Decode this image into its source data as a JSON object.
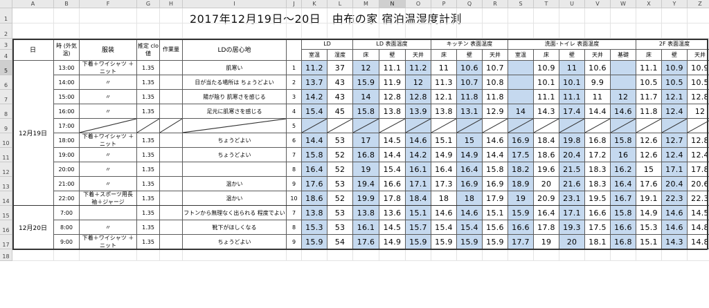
{
  "title": "2017年12月19日〜20日　由布の家 宿泊温湿度計測",
  "selected": {
    "col": "N",
    "row": "5"
  },
  "col_letters": [
    "A",
    "B",
    "F",
    "G",
    "H",
    "I",
    "J",
    "K",
    "L",
    "M",
    "N",
    "O",
    "P",
    "Q",
    "R",
    "S",
    "T",
    "U",
    "V",
    "W",
    "X",
    "Y",
    "Z"
  ],
  "row_numbers": [
    "1",
    "2",
    "3",
    "4",
    "5",
    "6",
    "7",
    "8",
    "9",
    "10",
    "11",
    "12",
    "13",
    "14",
    "15",
    "16",
    "17",
    "18"
  ],
  "headers": {
    "day": "日",
    "time": "時 (外気 温)",
    "clothing": "服装",
    "clo": "推定 clo 値",
    "work": "作業量",
    "comfort": "LDの居心地",
    "groups": [
      "LD",
      "LD 表面温度",
      "キッチン 表面温度",
      "洗面･トイレ 表面温度",
      "2F 表面温度"
    ],
    "sub": [
      "室温",
      "湿度",
      "床",
      "壁",
      "天井",
      "床",
      "壁",
      "天井",
      "室温",
      "床",
      "壁",
      "天井",
      "基礎",
      "床",
      "壁",
      "天井"
    ]
  },
  "days": [
    "12月19日",
    "12月20日"
  ],
  "rows": [
    {
      "time": "13:00",
      "clothing": "下着＋ワイシャツ ＋ニット",
      "clo": "1.35",
      "comfort": "肌寒い",
      "n": "1",
      "vals": [
        "11.2",
        "37",
        "12",
        "11.1",
        "11.2",
        "11",
        "10.6",
        "10.7",
        "",
        "10.9",
        "11",
        "10.6",
        "",
        "11.1",
        "10.9",
        "10.9"
      ]
    },
    {
      "time": "14:00",
      "clothing": "〃",
      "clo": "1.35",
      "comfort": "日が当たる場所は ちょうどよい",
      "n": "2",
      "vals": [
        "13.7",
        "43",
        "15.9",
        "11.9",
        "12",
        "11.3",
        "10.7",
        "10.8",
        "",
        "10.1",
        "10.1",
        "9.9",
        "",
        "10.5",
        "10.5",
        "10.5"
      ]
    },
    {
      "time": "15:00",
      "clothing": "〃",
      "clo": "1.35",
      "comfort": "陽が陰り 肌寒さを感じる",
      "n": "3",
      "vals": [
        "14.2",
        "43",
        "14",
        "12.8",
        "12.8",
        "12.1",
        "11.8",
        "11.8",
        "",
        "11.1",
        "11.1",
        "11",
        "12",
        "11.7",
        "12.1",
        "12.8"
      ]
    },
    {
      "time": "16:00",
      "clothing": "〃",
      "clo": "1.35",
      "comfort": "足元に肌寒さを感じる",
      "n": "4",
      "vals": [
        "15.4",
        "45",
        "15.8",
        "13.8",
        "13.9",
        "13.8",
        "13.1",
        "12.9",
        "14",
        "14.3",
        "17.4",
        "14.4",
        "14.6",
        "11.8",
        "12.4",
        "12"
      ]
    },
    {
      "time": "17:00",
      "clothing": "",
      "clo": "",
      "comfort": "",
      "n": "5",
      "vals": [
        "",
        "",
        "",
        "",
        "",
        "",
        "",
        "",
        "",
        "",
        "",
        "",
        "",
        "",
        "",
        ""
      ]
    },
    {
      "time": "18:00",
      "clothing": "下着＋ワイシャツ ＋ニット",
      "clo": "1.35",
      "comfort": "ちょうどよい",
      "n": "6",
      "vals": [
        "14.4",
        "53",
        "17",
        "14.5",
        "14.6",
        "15.1",
        "15",
        "14.6",
        "16.9",
        "18.4",
        "19.8",
        "16.8",
        "15.8",
        "12.6",
        "12.7",
        "12.8"
      ]
    },
    {
      "time": "19:00",
      "clothing": "〃",
      "clo": "1.35",
      "comfort": "ちょうどよい",
      "n": "7",
      "vals": [
        "15.8",
        "52",
        "16.8",
        "14.4",
        "14.2",
        "14.9",
        "14.9",
        "14.4",
        "17.5",
        "18.6",
        "20.4",
        "17.2",
        "16",
        "12.6",
        "12.4",
        "12.4"
      ]
    },
    {
      "time": "20:00",
      "clothing": "〃",
      "clo": "1.35",
      "comfort": "",
      "n": "8",
      "vals": [
        "16.4",
        "52",
        "19",
        "15.4",
        "16.1",
        "16.4",
        "16.4",
        "15.8",
        "18.2",
        "19.6",
        "21.5",
        "18.3",
        "16.2",
        "15",
        "17.1",
        "17.8"
      ]
    },
    {
      "time": "21:00",
      "clothing": "〃",
      "clo": "1.35",
      "comfort": "温かい",
      "n": "9",
      "vals": [
        "17.6",
        "53",
        "19.4",
        "16.6",
        "17.1",
        "17.3",
        "16.9",
        "16.9",
        "18.9",
        "20",
        "21.6",
        "18.3",
        "16.4",
        "17.6",
        "20.4",
        "20.6"
      ]
    },
    {
      "time": "22:00",
      "clothing": "下着＋スポーツ用長 袖＋ジャージ",
      "clo": "1.35",
      "comfort": "温かい",
      "n": "10",
      "vals": [
        "18.6",
        "52",
        "19.9",
        "17.8",
        "18.4",
        "18",
        "18",
        "17.9",
        "19",
        "20.9",
        "23.1",
        "19.5",
        "16.7",
        "19.1",
        "22.3",
        "22.3"
      ]
    },
    {
      "time": "7:00",
      "clothing": "",
      "clo": "1.35",
      "comfort": "フトンから無理なく出られる 程度でよい",
      "n": "7",
      "vals": [
        "13.8",
        "53",
        "13.8",
        "13.6",
        "15.1",
        "14.6",
        "14.6",
        "15.1",
        "15.9",
        "16.4",
        "17.1",
        "16.6",
        "15.8",
        "14.9",
        "14.6",
        "14.5"
      ]
    },
    {
      "time": "8:00",
      "clothing": "〃",
      "clo": "1.35",
      "comfort": "靴下がほしくなる",
      "n": "8",
      "vals": [
        "15.3",
        "53",
        "16.1",
        "14.5",
        "15.7",
        "15.4",
        "15.4",
        "15.6",
        "16.6",
        "17.8",
        "19.3",
        "17.5",
        "16.6",
        "15.3",
        "14.6",
        "14.8"
      ]
    },
    {
      "time": "9:00",
      "clothing": "下着＋ワイシャツ ＋ニット",
      "clo": "1.35",
      "comfort": "ちょうどよい",
      "n": "9",
      "vals": [
        "15.9",
        "54",
        "17.6",
        "14.9",
        "15.9",
        "15.9",
        "15.9",
        "15.9",
        "17.7",
        "19",
        "20",
        "18.1",
        "16.8",
        "15.1",
        "14.3",
        "14.8"
      ]
    }
  ],
  "blue_cells": {
    "K": [
      0,
      1,
      2,
      3,
      5,
      6,
      7,
      8,
      9,
      10,
      11,
      12
    ],
    "M": [
      0,
      1,
      2,
      3,
      5,
      6,
      7,
      8,
      9,
      10,
      11,
      12
    ],
    "O": [
      0,
      1,
      2,
      3,
      5,
      6,
      7,
      8,
      9,
      10,
      11,
      12
    ],
    "Q": [
      0,
      1,
      2,
      3,
      5,
      6,
      7,
      8,
      9,
      10,
      11,
      12
    ],
    "S": [
      0,
      1,
      2,
      3,
      5,
      6,
      7,
      8,
      9,
      10,
      11,
      12
    ],
    "U": [
      0,
      1,
      2,
      3,
      5,
      6,
      7,
      8,
      9,
      10,
      11,
      12
    ],
    "W": [
      0,
      1,
      2,
      3,
      5,
      6,
      7,
      8,
      9,
      10,
      11,
      12
    ],
    "Y": [
      0,
      1,
      2,
      3,
      5,
      6,
      7,
      8,
      9,
      10,
      11,
      12
    ]
  }
}
